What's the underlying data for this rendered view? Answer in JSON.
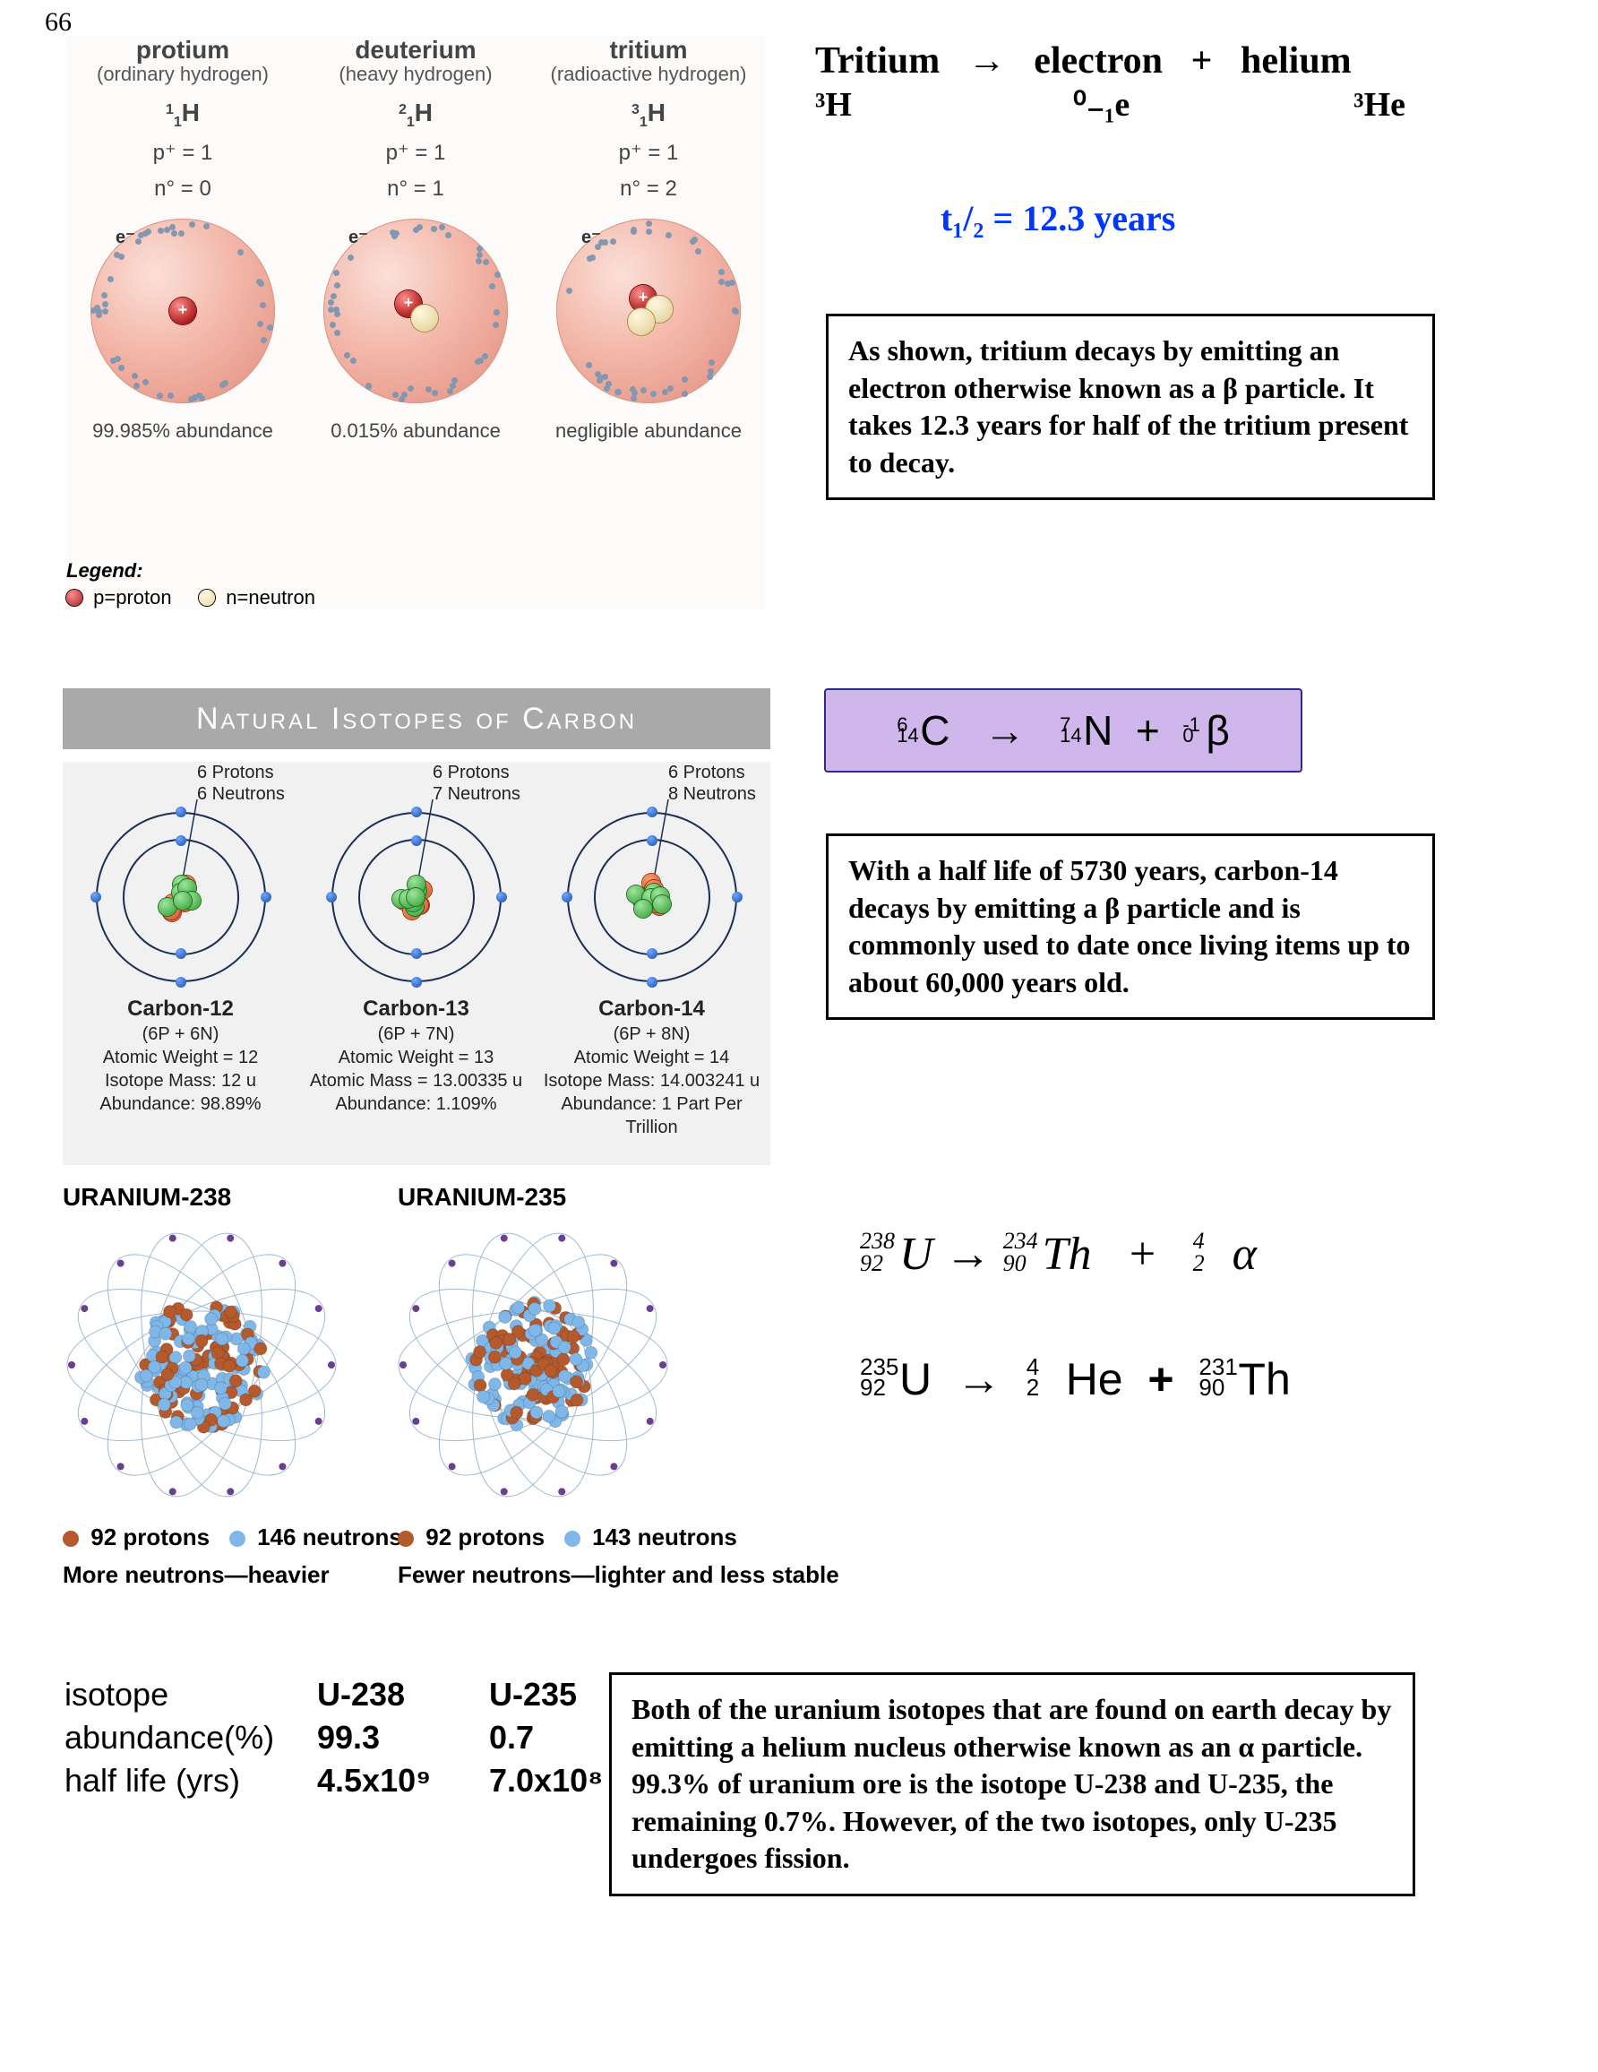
{
  "page_number": "66",
  "hydrogen": {
    "columns": [
      {
        "name": "protium",
        "sub": "(ordinary hydrogen)",
        "mass": "1",
        "symbol": "H",
        "p": "p⁺ = 1",
        "n": "n° = 0",
        "abund": "99.985% abundance",
        "neutrons": 0
      },
      {
        "name": "deuterium",
        "sub": "(heavy hydrogen)",
        "mass": "2",
        "symbol": "H",
        "p": "p⁺ = 1",
        "n": "n° = 1",
        "abund": "0.015% abundance",
        "neutrons": 1
      },
      {
        "name": "tritium",
        "sub": "(radioactive hydrogen)",
        "mass": "3",
        "symbol": "H",
        "p": "p⁺ = 1",
        "n": "n° = 2",
        "abund": "negligible abundance",
        "neutrons": 2
      }
    ],
    "electron_label": "e⁻",
    "legend": {
      "title": "Legend:",
      "p": "p=proton",
      "n": "n=neutron"
    }
  },
  "tritium_eqn": {
    "words": [
      "Tritium",
      "→",
      "electron",
      "+",
      "helium"
    ],
    "symbols": [
      "³H",
      "⁰₋₁e",
      "³He"
    ],
    "halflife": "t₁/₂  =  12.3 years"
  },
  "box_tritium": "As shown, tritium decays by emitting an electron otherwise known as a β particle.  It takes 12.3 years for half of the tritium present to decay.",
  "carbon_bar": "Natural Isotopes of Carbon",
  "carbon": {
    "columns": [
      {
        "p": "6 Protons",
        "n": "6 Neutrons",
        "name": "Carbon-12",
        "comp": "(6P + 6N)",
        "l1": "Atomic Weight = 12",
        "l2": "Isotope Mass: 12 u",
        "l3": "Abundance: 98.89%"
      },
      {
        "p": "6 Protons",
        "n": "7 Neutrons",
        "name": "Carbon-13",
        "comp": "(6P + 7N)",
        "l1": "Atomic Weight = 13",
        "l2": "Atomic Mass = 13.00335 u",
        "l3": "Abundance: 1.109%"
      },
      {
        "p": "6 Protons",
        "n": "8 Neutrons",
        "name": "Carbon-14",
        "comp": "(6P + 8N)",
        "l1": "Atomic Weight = 14",
        "l2": "Isotope Mass: 14.003241 u",
        "l3": "Abundance: 1 Part Per Trillion"
      }
    ]
  },
  "c14_eqn": {
    "lhs": {
      "A": "14",
      "Z": "6",
      "X": "C"
    },
    "arrow": "→",
    "rhs1": {
      "A": "14",
      "Z": "7",
      "X": "N"
    },
    "plus": "+",
    "rhs2": {
      "A": "0",
      "Z": "-1",
      "X": "β"
    }
  },
  "box_c14": "With a half life of 5730 years, carbon-14 decays by emitting a β particle and is commonly used to date once living items up to about 60,000 years old.",
  "uranium": {
    "u238": {
      "title": "URANIUM-238",
      "protons": "92 protons",
      "neutrons": "146 neutrons",
      "note": "More neutrons—heavier"
    },
    "u235": {
      "title": "URANIUM-235",
      "protons": "92 protons",
      "neutrons": "143 neutrons",
      "note": "Fewer neutrons—lighter and less stable"
    }
  },
  "eqn_u238": {
    "lhs": {
      "A": "238",
      "Z": "92",
      "X": "U"
    },
    "arrow": "→",
    "rhs1": {
      "A": "234",
      "Z": "90",
      "X": "Th"
    },
    "plus": "+",
    "rhs2": {
      "A": "4",
      "Z": "2",
      "X": "α"
    }
  },
  "eqn_u235": {
    "lhs": {
      "A": "235",
      "Z": "92",
      "X": "U"
    },
    "arrow": "→",
    "rhs1": {
      "A": "4",
      "Z": "2",
      "X": "He"
    },
    "plus": "+",
    "rhs2": {
      "A": "231",
      "Z": "90",
      "X": "Th"
    }
  },
  "u_table": {
    "rows": [
      [
        "isotope",
        "U-238",
        "U-235"
      ],
      [
        "abundance(%)",
        "99.3",
        "0.7"
      ],
      [
        "half life (yrs)",
        "4.5x10⁹",
        "7.0x10⁸"
      ]
    ]
  },
  "box_u": "Both of the uranium isotopes that are found on earth decay by emitting a helium nucleus otherwise known as an α particle.  99.3% of uranium ore is the isotope U-238 and U-235, the remaining 0.7%.  However, of the two isotopes, only U-235 undergoes fission.",
  "colors": {
    "halflife": "#0037ff",
    "c14_box_bg": "#d0b7eb",
    "c14_box_border": "#2c2c8c",
    "carbon_bar": "#a9a9a9",
    "proton": "#b02020",
    "neutron": "#e9d9a7",
    "u_orange": "#b45a2d",
    "u_blue": "#7fb7e8"
  }
}
